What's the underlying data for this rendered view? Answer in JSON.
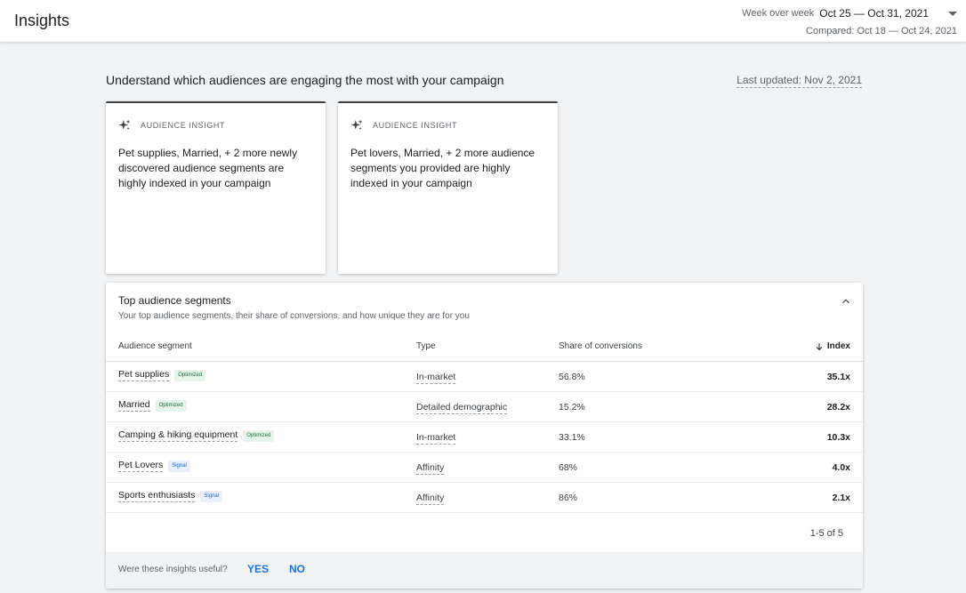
{
  "header": {
    "title": "Insights",
    "range_prefix": "Week over week",
    "range_value": "Oct 25 — Oct 31, 2021",
    "compared": "Compared: Oct 18 — Oct 24, 2021"
  },
  "main": {
    "heading": "Understand which audiences are engaging the most with your campaign",
    "last_updated": "Last updated: Nov 2, 2021"
  },
  "insight_cards": [
    {
      "eyebrow": "AUDIENCE INSIGHT",
      "icon": "sparkle-icon",
      "text": "Pet supplies, Married, + 2 more newly discovered audience segments are highly indexed in your campaign"
    },
    {
      "eyebrow": "AUDIENCE INSIGHT",
      "icon": "sparkle-icon",
      "text": "Pet lovers, Married, + 2 more audience segments you provided are highly indexed in your campaign"
    }
  ],
  "segments": {
    "title": "Top audience segments",
    "subtitle": "Your top audience segments, their share of conversions, and how unique they are for you",
    "columns": {
      "segment": "Audience segment",
      "type": "Type",
      "share": "Share of conversions",
      "index": "Index"
    },
    "rows": [
      {
        "segment": "Pet supplies",
        "badge": "Optimized",
        "type": "In-market",
        "share": "56.8%",
        "index": "35.1x"
      },
      {
        "segment": "Married",
        "badge": "Optimized",
        "type": "Detailed demographic",
        "share": "15.2%",
        "index": "28.2x"
      },
      {
        "segment": "Camping & hiking equipment",
        "badge": "Optimized",
        "type": "In-market",
        "share": "33.1%",
        "index": "10.3x"
      },
      {
        "segment": "Pet Lovers",
        "badge": "Signal",
        "type": "Affinity",
        "share": "68%",
        "index": "4.0x"
      },
      {
        "segment": "Sports enthusiasts",
        "badge": "Signal",
        "type": "Affinity",
        "share": "86%",
        "index": "2.1x"
      }
    ],
    "pagination": "1-5 of 5"
  },
  "feedback": {
    "question": "Were these insights useful?",
    "yes": "YES",
    "no": "NO"
  },
  "colors": {
    "accent": "#1a73e8",
    "optimized_bg": "#e6f4ea",
    "optimized_text": "#137333",
    "signal_bg": "#e8f0fe",
    "signal_text": "#1967d2"
  }
}
